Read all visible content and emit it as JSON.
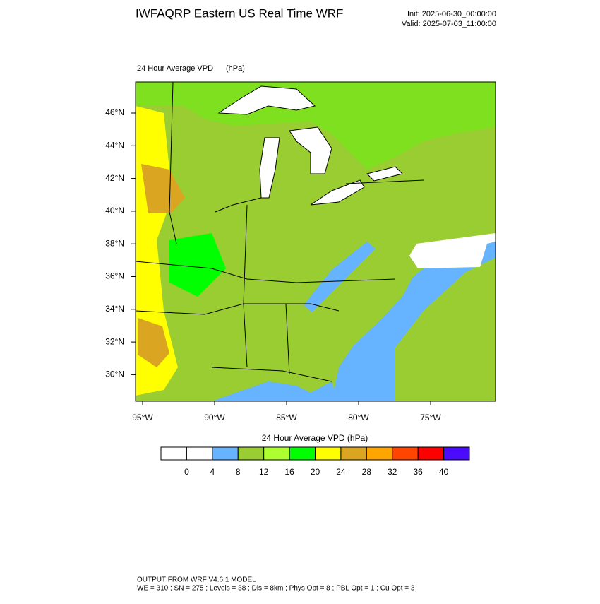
{
  "header": {
    "title": "IWFAQRP Eastern US Real Time WRF",
    "init": "Init: 2025-06-30_00:00:00",
    "valid": "Valid: 2025-07-03_11:00:00"
  },
  "map": {
    "field": "24 Hour Average VPD",
    "units": "(hPa)",
    "lat_labels": [
      "46°N",
      "44°N",
      "42°N",
      "40°N",
      "38°N",
      "36°N",
      "34°N",
      "32°N",
      "30°N"
    ],
    "lon_labels": [
      "95°W",
      "90°W",
      "85°W",
      "80°W",
      "75°W"
    ]
  },
  "colorbar": {
    "title": "24 Hour Average VPD  (hPa)",
    "colors": [
      "#ffffff",
      "#ffffff",
      "#66b3ff",
      "#9acd32",
      "#adff2f",
      "#00ff00",
      "#ffff00",
      "#daa520",
      "#ffa500",
      "#ff4500",
      "#ff0000",
      "#4b0bff"
    ],
    "ticks": [
      0,
      4,
      8,
      12,
      16,
      20,
      24,
      28,
      32,
      36,
      40
    ]
  },
  "footer": {
    "line1": "OUTPUT FROM WRF V4.6.1 MODEL",
    "line2": "WE = 310 ; SN = 275 ; Levels = 38 ; Dis = 8km ; Phys Opt = 8 ; PBL Opt = 1 ; Cu Opt = 3"
  }
}
